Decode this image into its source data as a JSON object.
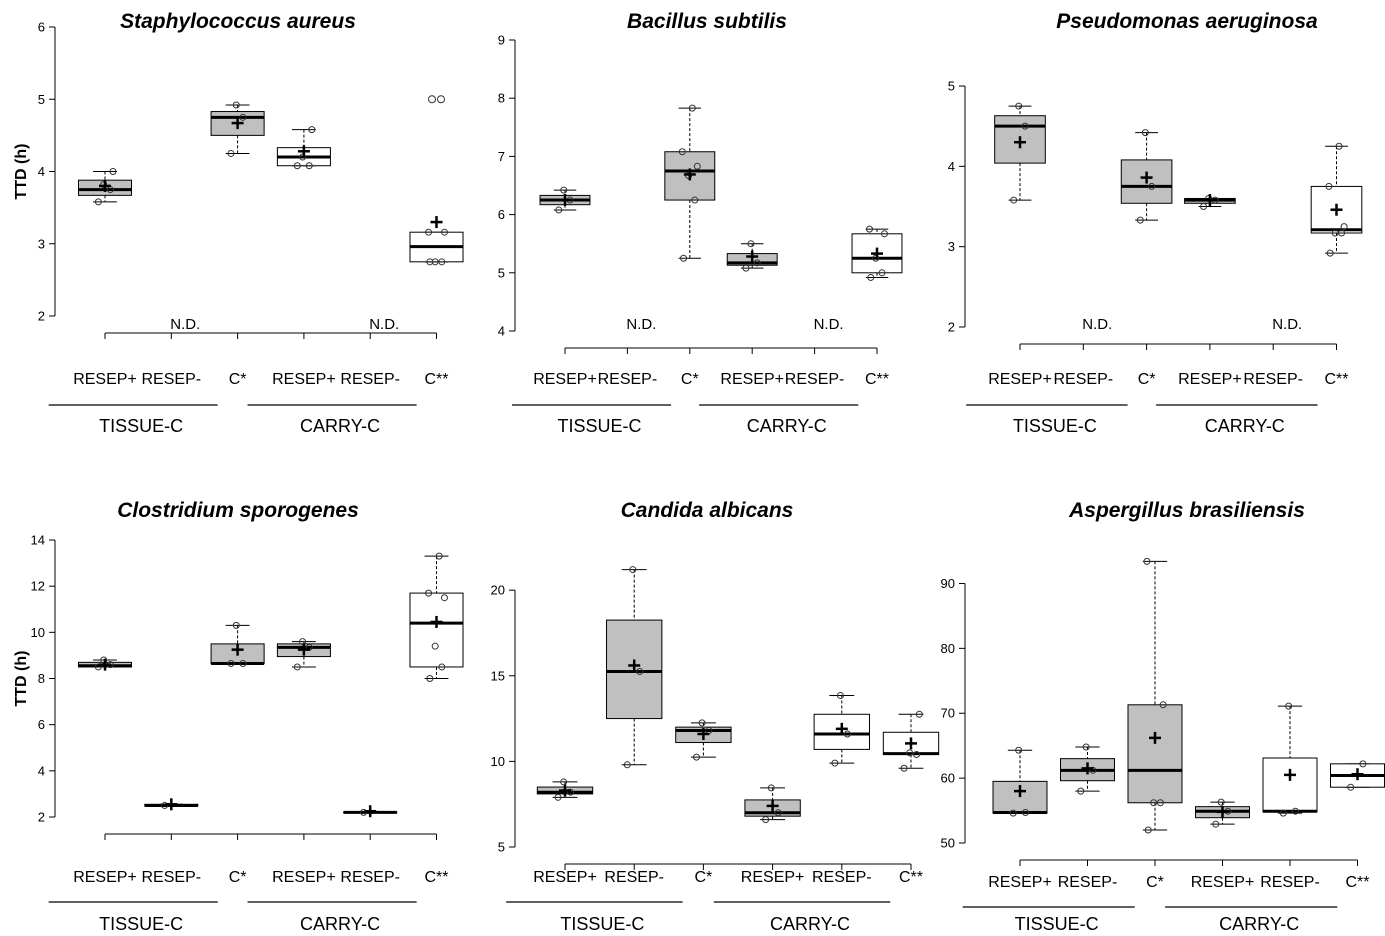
{
  "colors": {
    "filled_box": "#c0c0c0",
    "open_box": "#ffffff",
    "ink": "#000000"
  },
  "chart_data": [
    {
      "type": "box",
      "title": "Staphylococcus aureus",
      "ylabel": "TTD (h)",
      "ylim": [
        2,
        6
      ],
      "yticks": [
        2,
        3,
        4,
        5,
        6
      ],
      "categories": [
        "RESEP+",
        "RESEP-",
        "C*",
        "RESEP+",
        "RESEP-",
        "C**"
      ],
      "groups": [
        {
          "label": "TISSUE-C",
          "span": [
            0,
            2
          ]
        },
        {
          "label": "CARRY-C",
          "span": [
            3,
            5
          ]
        }
      ],
      "boxes": [
        {
          "fill": "gray",
          "q1": 3.67,
          "median": 3.75,
          "q3": 3.88,
          "mean": 3.8,
          "wlow": 3.58,
          "whigh": 4.0,
          "points": [
            3.58,
            3.75,
            3.82,
            4.0
          ]
        },
        {
          "nd": true,
          "label": "N.D."
        },
        {
          "fill": "gray",
          "q1": 4.5,
          "median": 4.75,
          "q3": 4.83,
          "mean": 4.67,
          "wlow": 4.25,
          "whigh": 4.92,
          "points": [
            4.25,
            4.75,
            4.92
          ]
        },
        {
          "fill": "white",
          "q1": 4.08,
          "median": 4.2,
          "q3": 4.33,
          "mean": 4.28,
          "wlow": 4.08,
          "whigh": 4.58,
          "points": [
            4.08,
            4.08,
            4.2,
            4.58
          ]
        },
        {
          "nd": true,
          "label": "N.D."
        },
        {
          "fill": "white",
          "q1": 2.75,
          "median": 2.96,
          "q3": 3.16,
          "mean": 3.3,
          "wlow": 2.75,
          "whigh": 3.16,
          "points": [
            2.75,
            2.75,
            2.75,
            3.16,
            3.16
          ],
          "outliers": [
            5.0,
            5.0
          ]
        }
      ]
    },
    {
      "type": "box",
      "title": "Bacillus subtilis",
      "ylabel": "",
      "ylim": [
        4,
        9
      ],
      "yticks": [
        4,
        5,
        6,
        7,
        8,
        9
      ],
      "categories": [
        "RESEP+",
        "RESEP-",
        "C*",
        "RESEP+",
        "RESEP-",
        "C**"
      ],
      "groups": [
        {
          "label": "TISSUE-C",
          "span": [
            0,
            2
          ]
        },
        {
          "label": "CARRY-C",
          "span": [
            3,
            5
          ]
        }
      ],
      "boxes": [
        {
          "fill": "gray",
          "q1": 6.17,
          "median": 6.25,
          "q3": 6.33,
          "mean": 6.25,
          "wlow": 6.08,
          "whigh": 6.42,
          "points": [
            6.08,
            6.25,
            6.42
          ]
        },
        {
          "nd": true,
          "label": "N.D."
        },
        {
          "fill": "gray",
          "q1": 6.25,
          "median": 6.75,
          "q3": 7.08,
          "mean": 6.69,
          "wlow": 5.25,
          "whigh": 7.83,
          "points": [
            5.25,
            6.25,
            6.67,
            6.83,
            7.08,
            7.83
          ]
        },
        {
          "fill": "gray",
          "q1": 5.13,
          "median": 5.17,
          "q3": 5.33,
          "mean": 5.28,
          "wlow": 5.08,
          "whigh": 5.5,
          "points": [
            5.08,
            5.17,
            5.5
          ]
        },
        {
          "nd": true,
          "label": "N.D."
        },
        {
          "fill": "white",
          "q1": 5.0,
          "median": 5.25,
          "q3": 5.67,
          "mean": 5.33,
          "wlow": 4.92,
          "whigh": 5.75,
          "points": [
            4.92,
            5.0,
            5.25,
            5.67,
            5.75
          ]
        }
      ]
    },
    {
      "type": "box",
      "title": "Pseudomonas aeruginosa",
      "ylabel": "",
      "ylim": [
        2,
        5
      ],
      "yticks": [
        2,
        3,
        4,
        5
      ],
      "categories": [
        "RESEP+",
        "RESEP-",
        "C*",
        "RESEP+",
        "RESEP-",
        "C**"
      ],
      "groups": [
        {
          "label": "TISSUE-C",
          "span": [
            0,
            2
          ]
        },
        {
          "label": "CARRY-C",
          "span": [
            3,
            5
          ]
        }
      ],
      "boxes": [
        {
          "fill": "gray",
          "q1": 4.04,
          "median": 4.5,
          "q3": 4.63,
          "mean": 4.3,
          "wlow": 3.58,
          "whigh": 4.75,
          "points": [
            3.58,
            4.5,
            4.75
          ]
        },
        {
          "nd": true,
          "label": "N.D."
        },
        {
          "fill": "gray",
          "q1": 3.54,
          "median": 3.75,
          "q3": 4.08,
          "mean": 3.86,
          "wlow": 3.33,
          "whigh": 4.42,
          "points": [
            3.33,
            3.75,
            4.42
          ]
        },
        {
          "fill": "gray",
          "q1": 3.54,
          "median": 3.58,
          "q3": 3.6,
          "mean": 3.58,
          "wlow": 3.5,
          "whigh": 3.6,
          "points": [
            3.5,
            3.58,
            3.6
          ]
        },
        {
          "nd": true,
          "label": "N.D."
        },
        {
          "fill": "white",
          "q1": 3.17,
          "median": 3.21,
          "q3": 3.75,
          "mean": 3.46,
          "wlow": 2.92,
          "whigh": 4.25,
          "points": [
            2.92,
            3.17,
            3.17,
            3.25,
            3.75,
            4.25
          ]
        }
      ]
    },
    {
      "type": "box",
      "title": "Clostridium sporogenes",
      "ylabel": "TTD (h)",
      "ylim": [
        2,
        14
      ],
      "yticks": [
        2,
        4,
        6,
        8,
        10,
        12,
        14
      ],
      "categories": [
        "RESEP+",
        "RESEP-",
        "C*",
        "RESEP+",
        "RESEP-",
        "C**"
      ],
      "groups": [
        {
          "label": "TISSUE-C",
          "span": [
            0,
            2
          ]
        },
        {
          "label": "CARRY-C",
          "span": [
            3,
            5
          ]
        }
      ],
      "boxes": [
        {
          "fill": "gray",
          "q1": 8.5,
          "median": 8.55,
          "q3": 8.7,
          "mean": 8.6,
          "wlow": 8.5,
          "whigh": 8.8,
          "points": [
            8.5,
            8.6,
            8.8
          ]
        },
        {
          "fill": "gray",
          "q1": 2.48,
          "median": 2.5,
          "q3": 2.55,
          "mean": 2.55,
          "wlow": 2.48,
          "whigh": 2.55,
          "points": [
            2.5
          ]
        },
        {
          "fill": "gray",
          "q1": 8.65,
          "median": 8.65,
          "q3": 9.5,
          "mean": 9.25,
          "wlow": 8.65,
          "whigh": 10.3,
          "points": [
            8.65,
            8.65,
            10.3
          ]
        },
        {
          "fill": "gray",
          "q1": 8.95,
          "median": 9.35,
          "q3": 9.5,
          "mean": 9.25,
          "wlow": 8.5,
          "whigh": 9.6,
          "points": [
            8.5,
            9.35,
            9.6
          ]
        },
        {
          "fill": "gray",
          "q1": 2.18,
          "median": 2.2,
          "q3": 2.22,
          "mean": 2.25,
          "wlow": 2.18,
          "whigh": 2.22,
          "points": [
            2.2
          ]
        },
        {
          "fill": "white",
          "q1": 8.5,
          "median": 10.4,
          "q3": 11.7,
          "mean": 10.45,
          "wlow": 8.0,
          "whigh": 13.3,
          "points": [
            8.0,
            8.5,
            9.4,
            11.5,
            11.7,
            13.3
          ]
        }
      ]
    },
    {
      "type": "box",
      "title": "Candida albicans",
      "ylabel": "",
      "ylim": [
        5,
        21
      ],
      "yticks": [
        5,
        10,
        15,
        20
      ],
      "categories": [
        "RESEP+",
        "RESEP-",
        "C*",
        "RESEP+",
        "RESEP-",
        "C**"
      ],
      "groups": [
        {
          "label": "TISSUE-C",
          "span": [
            0,
            2
          ]
        },
        {
          "label": "CARRY-C",
          "span": [
            3,
            5
          ]
        }
      ],
      "boxes": [
        {
          "fill": "gray",
          "q1": 8.1,
          "median": 8.2,
          "q3": 8.5,
          "mean": 8.3,
          "wlow": 7.9,
          "whigh": 8.8,
          "points": [
            7.9,
            8.2,
            8.8
          ]
        },
        {
          "fill": "gray",
          "q1": 12.5,
          "median": 15.25,
          "q3": 18.25,
          "mean": 15.6,
          "wlow": 9.8,
          "whigh": 21.2,
          "points": [
            9.8,
            15.25,
            21.2
          ]
        },
        {
          "fill": "gray",
          "q1": 11.1,
          "median": 11.8,
          "q3": 12.0,
          "mean": 11.6,
          "wlow": 10.25,
          "whigh": 12.25,
          "points": [
            10.25,
            11.8,
            12.25
          ]
        },
        {
          "fill": "gray",
          "q1": 6.8,
          "median": 7.0,
          "q3": 7.75,
          "mean": 7.4,
          "wlow": 6.6,
          "whigh": 8.45,
          "points": [
            6.6,
            7.0,
            8.45
          ]
        },
        {
          "fill": "white",
          "q1": 10.7,
          "median": 11.6,
          "q3": 12.75,
          "mean": 11.9,
          "wlow": 9.9,
          "whigh": 13.85,
          "points": [
            9.9,
            11.6,
            13.85
          ]
        },
        {
          "fill": "white",
          "q1": 10.4,
          "median": 10.45,
          "q3": 11.7,
          "mean": 11.05,
          "wlow": 9.6,
          "whigh": 12.75,
          "points": [
            9.6,
            10.4,
            10.5,
            12.75
          ]
        }
      ]
    },
    {
      "type": "box",
      "title": "Aspergillus brasiliensis",
      "ylabel": "",
      "ylim": [
        50,
        93
      ],
      "yticks": [
        50,
        60,
        70,
        80,
        90
      ],
      "categories": [
        "RESEP+",
        "RESEP-",
        "C*",
        "RESEP+",
        "RESEP-",
        "C**"
      ],
      "groups": [
        {
          "label": "TISSUE-C",
          "span": [
            0,
            2
          ]
        },
        {
          "label": "CARRY-C",
          "span": [
            3,
            5
          ]
        }
      ],
      "boxes": [
        {
          "fill": "gray",
          "q1": 54.6,
          "median": 54.7,
          "q3": 59.5,
          "mean": 58.0,
          "wlow": 54.6,
          "whigh": 64.3,
          "points": [
            54.6,
            54.7,
            64.3
          ]
        },
        {
          "fill": "gray",
          "q1": 59.6,
          "median": 61.2,
          "q3": 63.0,
          "mean": 61.5,
          "wlow": 58.0,
          "whigh": 64.8,
          "points": [
            58.0,
            61.2,
            64.8
          ]
        },
        {
          "fill": "gray",
          "q1": 56.2,
          "median": 61.2,
          "q3": 71.3,
          "mean": 66.2,
          "wlow": 52.0,
          "whigh": 93.4,
          "points": [
            52.0,
            56.2,
            56.2,
            71.3,
            93.4
          ]
        },
        {
          "fill": "gray",
          "q1": 53.9,
          "median": 54.9,
          "q3": 55.6,
          "mean": 54.8,
          "wlow": 52.9,
          "whigh": 56.3,
          "points": [
            52.9,
            54.9,
            56.3
          ]
        },
        {
          "fill": "white",
          "q1": 54.8,
          "median": 54.9,
          "q3": 63.1,
          "mean": 60.5,
          "wlow": 54.6,
          "whigh": 71.1,
          "points": [
            54.6,
            54.9,
            71.1
          ]
        },
        {
          "fill": "white",
          "q1": 58.6,
          "median": 60.4,
          "q3": 62.2,
          "mean": 60.6,
          "wlow": 58.6,
          "whigh": 62.2,
          "points": [
            58.6,
            62.2
          ]
        }
      ]
    }
  ]
}
